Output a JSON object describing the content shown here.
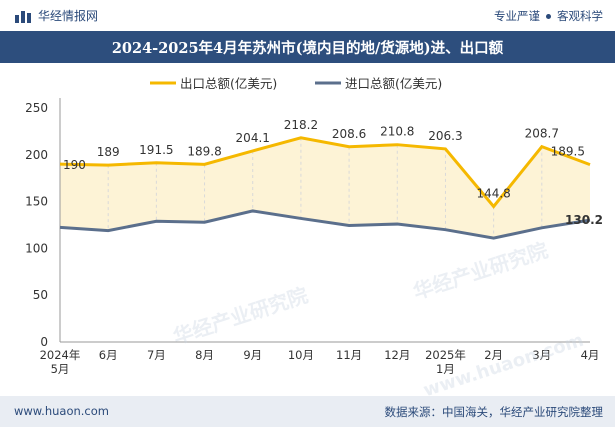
{
  "header": {
    "brand": "华经情报网",
    "tagline_left": "专业严谨",
    "tagline_right": "客观科学",
    "title": "2024-2025年4月年苏州市(境内目的地/货源地)进、出口额"
  },
  "footer": {
    "site": "www.huaon.com",
    "source": "数据来源：中国海关，华经产业研究院整理"
  },
  "watermarks": [
    "华经产业研究院",
    "www.huaon.com"
  ],
  "colors": {
    "export": "#f5b800",
    "import": "#5b6f8c",
    "fill": "#fdf3d6",
    "header_bg": "#2d4e7d",
    "footer_bg": "#e9edf3"
  },
  "chart_data": {
    "type": "area",
    "categories": [
      "2024年\n5月",
      "6月",
      "7月",
      "8月",
      "9月",
      "10月",
      "11月",
      "12月",
      "2025年\n1月",
      "2月",
      "3月",
      "4月"
    ],
    "series": [
      {
        "name": "出口总额(亿美元)",
        "values": [
          190,
          189,
          191.5,
          189.8,
          204.1,
          218.2,
          208.6,
          210.8,
          206.3,
          144.8,
          208.7,
          189.5
        ]
      },
      {
        "name": "进口总额(亿美元)",
        "values": [
          122.5,
          119,
          129,
          128,
          140,
          132,
          124.5,
          126,
          120,
          111,
          122,
          130.2
        ]
      }
    ],
    "data_labels": [
      "190",
      "189",
      "191.5",
      "189.8",
      "204.1",
      "218.2",
      "208.6",
      "210.8",
      "206.3",
      "144.8",
      "208.7",
      "189.5"
    ],
    "end_label_import": "130.2",
    "ylim": [
      0,
      250
    ],
    "yticks": [
      0,
      50,
      100,
      150,
      200,
      250
    ],
    "grid": false,
    "legend": "top"
  }
}
